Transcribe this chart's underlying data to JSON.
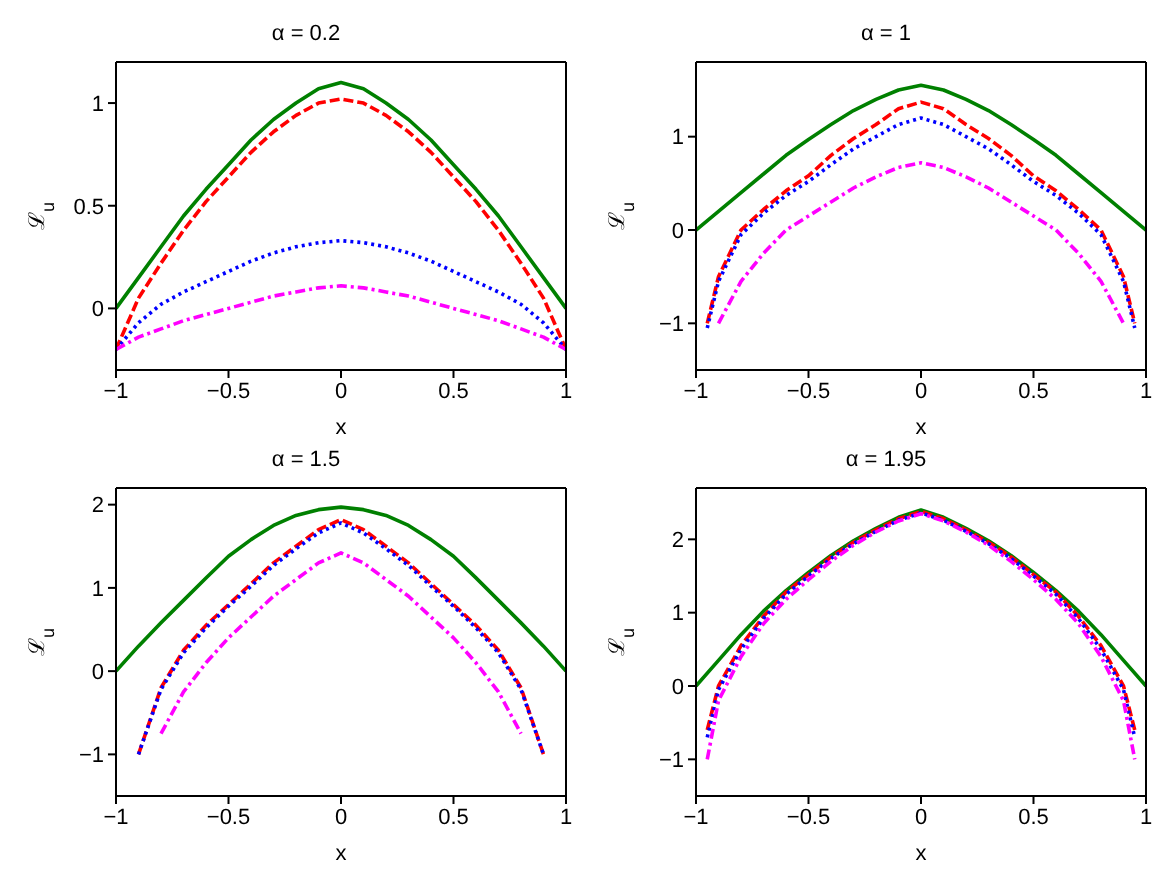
{
  "chart_data": [
    {
      "type": "line",
      "title": "α = 0.2",
      "xlabel": "x",
      "ylabel": "ℒ$_{u}$",
      "marker": "none",
      "xlim": [
        -1,
        1
      ],
      "xticks": [
        -1,
        -0.5,
        0,
        0.5,
        1
      ],
      "ylim": [
        -0.3,
        1.2
      ],
      "yticks": [
        0,
        0.5,
        1
      ],
      "x": [
        -1,
        -0.9,
        -0.8,
        -0.7,
        -0.6,
        -0.5,
        -0.4,
        -0.3,
        -0.2,
        -0.1,
        0,
        0.1,
        0.2,
        0.3,
        0.4,
        0.5,
        0.6,
        0.7,
        0.8,
        0.9,
        1
      ],
      "series": [
        {
          "color": "#008000",
          "line_style": "solid",
          "values": [
            0,
            0.15,
            0.3,
            0.45,
            0.58,
            0.7,
            0.82,
            0.92,
            1.0,
            1.07,
            1.1,
            1.07,
            1.0,
            0.92,
            0.82,
            0.7,
            0.58,
            0.45,
            0.3,
            0.15,
            0
          ]
        },
        {
          "color": "#ff0000",
          "line_style": "dashed",
          "values": [
            -0.2,
            0.05,
            0.22,
            0.38,
            0.52,
            0.64,
            0.76,
            0.86,
            0.94,
            1.0,
            1.02,
            1.0,
            0.94,
            0.86,
            0.76,
            0.64,
            0.52,
            0.38,
            0.22,
            0.05,
            -0.2
          ]
        },
        {
          "color": "#0000ff",
          "line_style": "dotted",
          "values": [
            -0.2,
            -0.07,
            0.02,
            0.08,
            0.13,
            0.18,
            0.23,
            0.27,
            0.3,
            0.32,
            0.33,
            0.32,
            0.3,
            0.27,
            0.23,
            0.18,
            0.13,
            0.08,
            0.02,
            -0.07,
            -0.2
          ]
        },
        {
          "color": "#ff00ff",
          "line_style": "dashdot",
          "values": [
            -0.2,
            -0.14,
            -0.1,
            -0.06,
            -0.03,
            0,
            0.03,
            0.06,
            0.08,
            0.1,
            0.11,
            0.1,
            0.08,
            0.06,
            0.03,
            0,
            -0.03,
            -0.06,
            -0.1,
            -0.14,
            -0.2
          ]
        }
      ]
    },
    {
      "type": "line",
      "title": "α = 1",
      "xlabel": "x",
      "ylabel": "ℒ$_{u}$",
      "marker": "none",
      "xlim": [
        -1,
        1
      ],
      "xticks": [
        -1,
        -0.5,
        0,
        0.5,
        1
      ],
      "ylim": [
        -1.5,
        1.8
      ],
      "yticks": [
        -1,
        0,
        1
      ],
      "x": [
        -1,
        -0.9,
        -0.8,
        -0.7,
        -0.6,
        -0.5,
        -0.4,
        -0.3,
        -0.2,
        -0.1,
        0,
        0.1,
        0.2,
        0.3,
        0.4,
        0.5,
        0.6,
        0.7,
        0.8,
        0.9,
        1
      ],
      "series": [
        {
          "color": "#008000",
          "line_style": "solid",
          "values": [
            0,
            0.2,
            0.4,
            0.6,
            0.8,
            0.97,
            1.13,
            1.28,
            1.4,
            1.5,
            1.55,
            1.5,
            1.4,
            1.28,
            1.13,
            0.97,
            0.8,
            0.6,
            0.4,
            0.2,
            0
          ]
        },
        {
          "color": "#ff0000",
          "line_style": "dashed",
          "x": [
            -0.95,
            -0.9,
            -0.8,
            -0.7,
            -0.6,
            -0.5,
            -0.4,
            -0.3,
            -0.2,
            -0.1,
            0,
            0.1,
            0.2,
            0.3,
            0.4,
            0.5,
            0.6,
            0.7,
            0.8,
            0.9,
            0.95
          ],
          "values": [
            -1.0,
            -0.5,
            0,
            0.22,
            0.42,
            0.58,
            0.8,
            0.98,
            1.13,
            1.3,
            1.37,
            1.3,
            1.13,
            0.98,
            0.8,
            0.58,
            0.42,
            0.22,
            0,
            -0.5,
            -1.0
          ]
        },
        {
          "color": "#0000ff",
          "line_style": "dotted",
          "x": [
            -0.95,
            -0.9,
            -0.8,
            -0.7,
            -0.6,
            -0.5,
            -0.4,
            -0.3,
            -0.2,
            -0.1,
            0,
            0.1,
            0.2,
            0.3,
            0.4,
            0.5,
            0.6,
            0.7,
            0.8,
            0.9,
            0.95
          ],
          "values": [
            -1.05,
            -0.55,
            -0.05,
            0.18,
            0.37,
            0.52,
            0.7,
            0.87,
            1.0,
            1.13,
            1.2,
            1.13,
            1.0,
            0.87,
            0.7,
            0.52,
            0.37,
            0.18,
            -0.05,
            -0.55,
            -1.05
          ]
        },
        {
          "color": "#ff00ff",
          "line_style": "dashdot",
          "x": [
            -0.9,
            -0.8,
            -0.7,
            -0.6,
            -0.5,
            -0.4,
            -0.3,
            -0.2,
            -0.1,
            0,
            0.1,
            0.2,
            0.3,
            0.4,
            0.5,
            0.6,
            0.7,
            0.8,
            0.9
          ],
          "values": [
            -1.0,
            -0.55,
            -0.25,
            0,
            0.15,
            0.3,
            0.45,
            0.57,
            0.67,
            0.72,
            0.67,
            0.57,
            0.45,
            0.3,
            0.15,
            0,
            -0.25,
            -0.55,
            -1.0
          ]
        }
      ]
    },
    {
      "type": "line",
      "title": "α = 1.5",
      "xlabel": "x",
      "ylabel": "ℒ$_{u}$",
      "marker": "none",
      "xlim": [
        -1,
        1
      ],
      "xticks": [
        -1,
        -0.5,
        0,
        0.5,
        1
      ],
      "ylim": [
        -1.5,
        2.2
      ],
      "yticks": [
        -1,
        0,
        1,
        2
      ],
      "x": [
        -1,
        -0.9,
        -0.8,
        -0.7,
        -0.6,
        -0.5,
        -0.4,
        -0.3,
        -0.2,
        -0.1,
        0,
        0.1,
        0.2,
        0.3,
        0.4,
        0.5,
        0.6,
        0.7,
        0.8,
        0.9,
        1
      ],
      "series": [
        {
          "color": "#008000",
          "line_style": "solid",
          "values": [
            0,
            0.3,
            0.58,
            0.85,
            1.12,
            1.38,
            1.58,
            1.75,
            1.87,
            1.94,
            1.97,
            1.94,
            1.87,
            1.75,
            1.58,
            1.38,
            1.12,
            0.85,
            0.58,
            0.3,
            0
          ]
        },
        {
          "color": "#ff0000",
          "line_style": "dashed",
          "x": [
            -0.9,
            -0.8,
            -0.7,
            -0.6,
            -0.5,
            -0.4,
            -0.3,
            -0.2,
            -0.1,
            0,
            0.1,
            0.2,
            0.3,
            0.4,
            0.5,
            0.6,
            0.7,
            0.8,
            0.9
          ],
          "values": [
            -1.0,
            -0.2,
            0.25,
            0.55,
            0.8,
            1.05,
            1.3,
            1.5,
            1.7,
            1.82,
            1.7,
            1.5,
            1.3,
            1.05,
            0.8,
            0.55,
            0.25,
            -0.2,
            -1.0
          ]
        },
        {
          "color": "#0000ff",
          "line_style": "dotted",
          "x": [
            -0.9,
            -0.8,
            -0.7,
            -0.6,
            -0.5,
            -0.4,
            -0.3,
            -0.2,
            -0.1,
            0,
            0.1,
            0.2,
            0.3,
            0.4,
            0.5,
            0.6,
            0.7,
            0.8,
            0.9
          ],
          "values": [
            -1.0,
            -0.22,
            0.22,
            0.52,
            0.78,
            1.02,
            1.27,
            1.47,
            1.66,
            1.78,
            1.66,
            1.47,
            1.27,
            1.02,
            0.78,
            0.52,
            0.22,
            -0.22,
            -1.0
          ]
        },
        {
          "color": "#ff00ff",
          "line_style": "dashdot",
          "x": [
            -0.8,
            -0.7,
            -0.6,
            -0.5,
            -0.4,
            -0.3,
            -0.2,
            -0.1,
            0,
            0.1,
            0.2,
            0.3,
            0.4,
            0.5,
            0.6,
            0.7,
            0.8
          ],
          "values": [
            -0.75,
            -0.25,
            0.1,
            0.4,
            0.65,
            0.9,
            1.1,
            1.3,
            1.42,
            1.3,
            1.1,
            0.9,
            0.65,
            0.4,
            0.1,
            -0.25,
            -0.75
          ]
        }
      ]
    },
    {
      "type": "line",
      "title": "α = 1.95",
      "xlabel": "x",
      "ylabel": "ℒ$_{u}$",
      "marker": "none",
      "xlim": [
        -1,
        1
      ],
      "xticks": [
        -1,
        -0.5,
        0,
        0.5,
        1
      ],
      "ylim": [
        -1.5,
        2.7
      ],
      "yticks": [
        -1,
        0,
        1,
        2
      ],
      "x": [
        -1,
        -0.9,
        -0.8,
        -0.7,
        -0.6,
        -0.5,
        -0.4,
        -0.3,
        -0.2,
        -0.1,
        0,
        0.1,
        0.2,
        0.3,
        0.4,
        0.5,
        0.6,
        0.7,
        0.8,
        0.9,
        1
      ],
      "series": [
        {
          "color": "#008000",
          "line_style": "solid",
          "values": [
            0,
            0.35,
            0.7,
            1.02,
            1.3,
            1.55,
            1.78,
            1.98,
            2.15,
            2.3,
            2.4,
            2.3,
            2.15,
            1.98,
            1.78,
            1.55,
            1.3,
            1.02,
            0.7,
            0.35,
            0
          ]
        },
        {
          "color": "#ff0000",
          "line_style": "dashed",
          "x": [
            -0.95,
            -0.9,
            -0.8,
            -0.7,
            -0.6,
            -0.5,
            -0.4,
            -0.3,
            -0.2,
            -0.1,
            0,
            0.1,
            0.2,
            0.3,
            0.4,
            0.5,
            0.6,
            0.7,
            0.8,
            0.9,
            0.95
          ],
          "values": [
            -0.6,
            0,
            0.55,
            0.95,
            1.28,
            1.52,
            1.76,
            1.96,
            2.13,
            2.28,
            2.38,
            2.28,
            2.13,
            1.96,
            1.76,
            1.52,
            1.28,
            0.95,
            0.55,
            0,
            -0.6
          ]
        },
        {
          "color": "#0000ff",
          "line_style": "dotted",
          "x": [
            -0.95,
            -0.9,
            -0.8,
            -0.7,
            -0.6,
            -0.5,
            -0.4,
            -0.3,
            -0.2,
            -0.1,
            0,
            0.1,
            0.2,
            0.3,
            0.4,
            0.5,
            0.6,
            0.7,
            0.8,
            0.9,
            0.95
          ],
          "values": [
            -0.7,
            -0.05,
            0.5,
            0.92,
            1.25,
            1.5,
            1.74,
            1.94,
            2.11,
            2.26,
            2.36,
            2.26,
            2.11,
            1.94,
            1.74,
            1.5,
            1.25,
            0.92,
            0.5,
            -0.05,
            -0.7
          ]
        },
        {
          "color": "#ff00ff",
          "line_style": "dashdot",
          "x": [
            -0.95,
            -0.9,
            -0.8,
            -0.7,
            -0.6,
            -0.5,
            -0.4,
            -0.3,
            -0.2,
            -0.1,
            0,
            0.1,
            0.2,
            0.3,
            0.4,
            0.5,
            0.6,
            0.7,
            0.8,
            0.9,
            0.95
          ],
          "values": [
            -1.0,
            -0.2,
            0.4,
            0.85,
            1.18,
            1.45,
            1.7,
            1.92,
            2.1,
            2.25,
            2.35,
            2.25,
            2.1,
            1.92,
            1.7,
            1.45,
            1.18,
            0.85,
            0.4,
            -0.2,
            -1.0
          ]
        }
      ]
    }
  ]
}
